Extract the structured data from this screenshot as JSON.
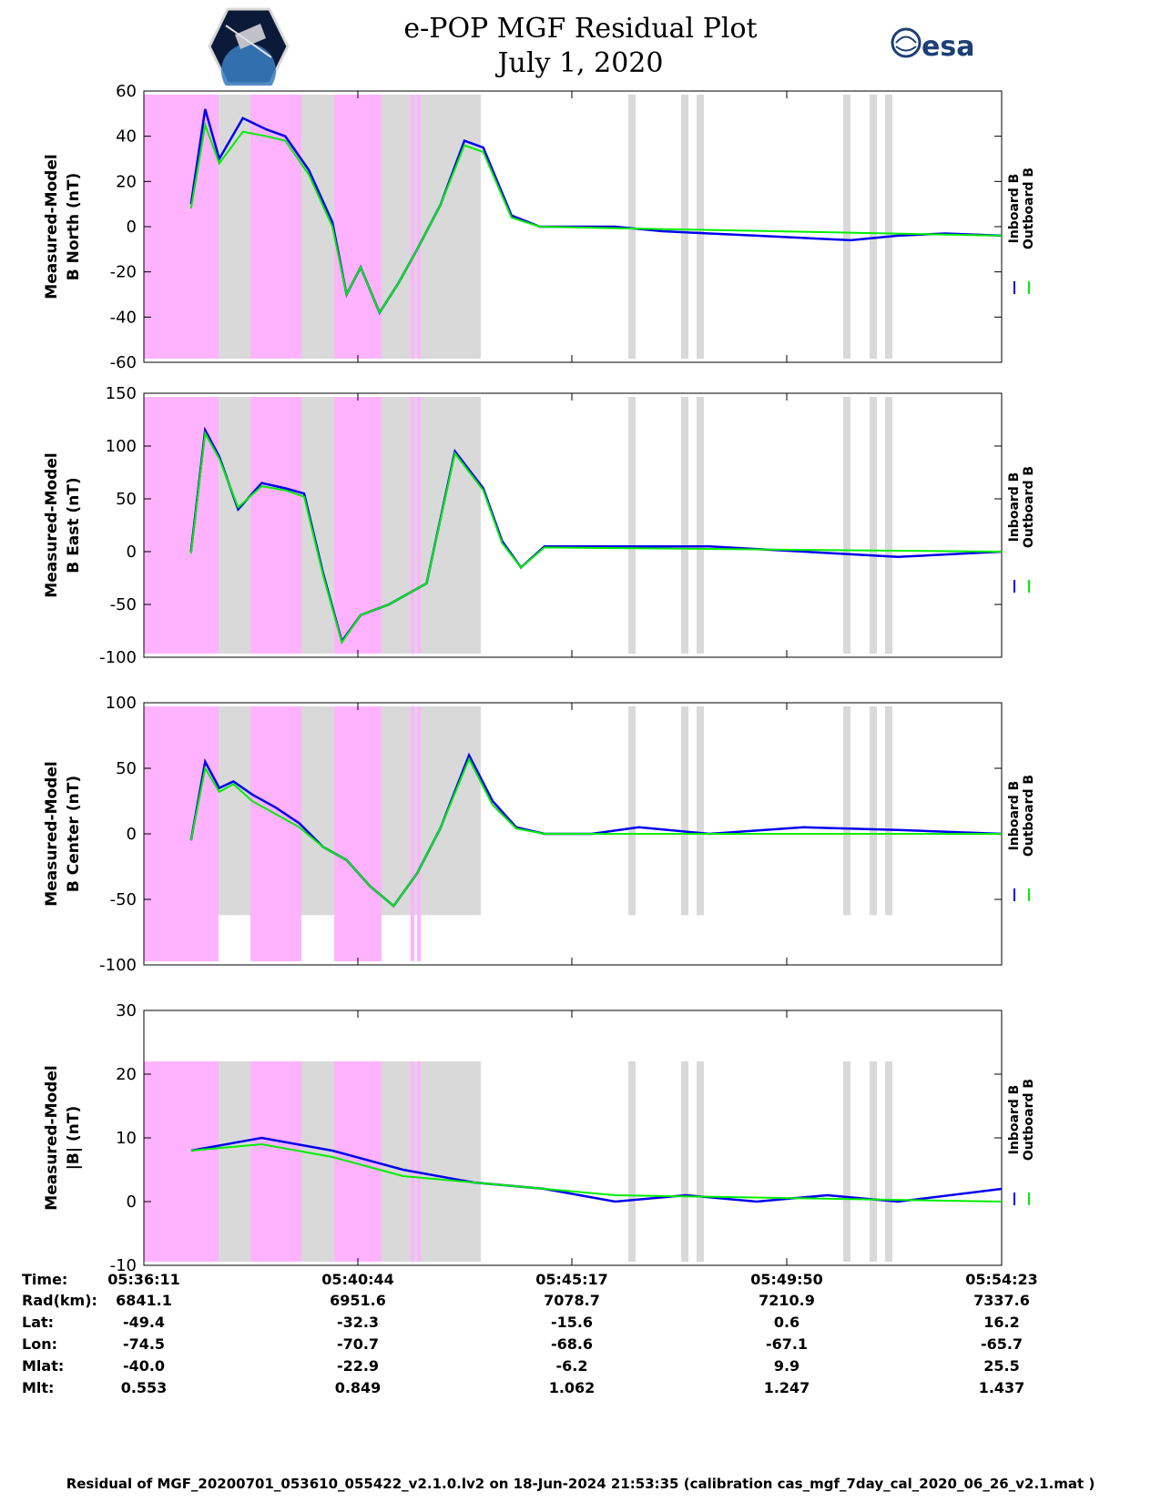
{
  "title": "e-POP MGF Residual Plot",
  "subtitle": "July 1, 2020",
  "logo_left": "cassiope-logo",
  "logo_right_text": "esa",
  "colors": {
    "inboard": "#0000ee",
    "outboard": "#00ee00",
    "eclipse": "#ffb3ff",
    "gray": "#d9d9d9"
  },
  "chart_data": [
    {
      "type": "line",
      "ylabel": "Measured-Model\nB North (nT)",
      "ylim": [
        -60,
        60
      ],
      "yticks": [
        "60",
        "40",
        "20",
        "0",
        "-20",
        "-40",
        "-60"
      ],
      "legend": [
        "Inboard B",
        "Outboard B"
      ],
      "series": [
        {
          "name": "Inboard B",
          "x": [
            0,
            0.3,
            0.8,
            1.0,
            1.3,
            1.6,
            2.1,
            2.6,
            3.0,
            3.5,
            4.0,
            4.3,
            4.6,
            5.0,
            5.4,
            5.8,
            6.3,
            6.8,
            7.2,
            7.8,
            8.4,
            9.0,
            9.5,
            10.0,
            11.0,
            12.0,
            13.0,
            14.0,
            15.0,
            16.0,
            17.0,
            18.2
          ],
          "values": [
            null,
            null,
            null,
            10,
            52,
            30,
            48,
            43,
            40,
            25,
            2,
            -30,
            -18,
            -38,
            -25,
            -10,
            10,
            38,
            35,
            5,
            0,
            0,
            0,
            0,
            -2,
            -3,
            -4,
            -5,
            -6,
            -4,
            -3,
            -4
          ]
        },
        {
          "name": "Outboard B",
          "x": [
            1.0,
            1.3,
            1.6,
            2.1,
            2.6,
            3.0,
            3.5,
            4.0,
            4.3,
            4.6,
            5.0,
            5.4,
            5.8,
            6.3,
            6.8,
            7.2,
            7.8,
            8.4,
            18.2
          ],
          "values": [
            8,
            45,
            28,
            42,
            40,
            38,
            23,
            0,
            -30,
            -18,
            -38,
            -25,
            -10,
            10,
            36,
            33,
            4,
            0,
            -4
          ]
        }
      ]
    },
    {
      "type": "line",
      "ylabel": "Measured-Model\nB East (nT)",
      "ylim": [
        -100,
        150
      ],
      "yticks": [
        "150",
        "100",
        "50",
        "0",
        "-50",
        "-100"
      ],
      "legend": [
        "Inboard B",
        "Outboard B"
      ],
      "series": [
        {
          "name": "Inboard B",
          "x": [
            1.0,
            1.3,
            1.6,
            2.0,
            2.5,
            3.0,
            3.4,
            3.8,
            4.2,
            4.6,
            5.2,
            6.0,
            6.6,
            7.2,
            7.6,
            8.0,
            8.5,
            9.0,
            10.0,
            12.0,
            14.0,
            16.0,
            18.2
          ],
          "values": [
            0,
            115,
            90,
            40,
            65,
            60,
            55,
            -20,
            -85,
            -60,
            -50,
            -30,
            95,
            60,
            10,
            -15,
            5,
            5,
            5,
            5,
            0,
            -5,
            0
          ]
        },
        {
          "name": "Outboard B",
          "x": [
            1.0,
            1.3,
            1.6,
            2.0,
            2.5,
            3.0,
            3.4,
            3.8,
            4.2,
            4.6,
            5.2,
            6.0,
            6.6,
            7.2,
            7.6,
            8.0,
            8.5,
            18.2
          ],
          "values": [
            -2,
            112,
            88,
            42,
            62,
            58,
            52,
            -22,
            -86,
            -60,
            -50,
            -30,
            93,
            58,
            8,
            -15,
            4,
            0
          ]
        }
      ]
    },
    {
      "type": "line",
      "ylabel": "Measured-Model\nB Center (nT)",
      "ylim": [
        -100,
        100
      ],
      "yticks": [
        "100",
        "50",
        "0",
        "-50",
        "-100"
      ],
      "legend": [
        "Inboard B",
        "Outboard B"
      ],
      "series": [
        {
          "name": "Inboard B",
          "x": [
            1.0,
            1.3,
            1.6,
            1.9,
            2.3,
            2.8,
            3.3,
            3.8,
            4.3,
            4.8,
            5.3,
            5.8,
            6.3,
            6.9,
            7.4,
            7.9,
            8.5,
            9.5,
            10.5,
            12.0,
            14.0,
            16.0,
            18.2
          ],
          "values": [
            -5,
            55,
            35,
            40,
            30,
            20,
            8,
            -10,
            -20,
            -40,
            -55,
            -30,
            5,
            60,
            25,
            5,
            0,
            0,
            5,
            0,
            5,
            3,
            0
          ]
        },
        {
          "name": "Outboard B",
          "x": [
            1.0,
            1.3,
            1.6,
            1.9,
            2.3,
            2.8,
            3.3,
            3.8,
            4.3,
            4.8,
            5.3,
            5.8,
            6.3,
            6.9,
            7.4,
            7.9,
            8.5,
            18.2
          ],
          "values": [
            -5,
            50,
            32,
            38,
            25,
            15,
            5,
            -10,
            -20,
            -40,
            -55,
            -30,
            5,
            57,
            22,
            4,
            0,
            0
          ]
        }
      ]
    },
    {
      "type": "line",
      "ylabel": "Measured-Model\n|B| (nT)",
      "ylim": [
        -10,
        30
      ],
      "yticks": [
        "30",
        "20",
        "10",
        "0",
        "-10"
      ],
      "legend": [
        "Inboard B",
        "Outboard B"
      ],
      "series": [
        {
          "name": "Inboard B",
          "x": [
            1.0,
            2.5,
            4.0,
            5.5,
            7.0,
            8.5,
            10.0,
            11.5,
            13.0,
            14.5,
            16.0,
            18.2
          ],
          "values": [
            8,
            10,
            8,
            5,
            3,
            2,
            0,
            1,
            0,
            1,
            0,
            2
          ]
        },
        {
          "name": "Outboard B",
          "x": [
            1.0,
            2.5,
            4.0,
            5.5,
            7.0,
            8.5,
            10.0,
            18.2
          ],
          "values": [
            8,
            9,
            7,
            4,
            3,
            2,
            1,
            0
          ]
        }
      ]
    }
  ],
  "table": {
    "labels": [
      "Time:",
      "Rad(km):",
      "Lat:",
      "Lon:",
      "Mlat:",
      "Mlt:"
    ],
    "columns": [
      [
        "05:36:11",
        "6841.1",
        "-49.4",
        "-74.5",
        "-40.0",
        "0.553"
      ],
      [
        "05:40:44",
        "6951.6",
        "-32.3",
        "-70.7",
        "-22.9",
        "0.849"
      ],
      [
        "05:45:17",
        "7078.7",
        "-15.6",
        "-68.6",
        "-6.2",
        "1.062"
      ],
      [
        "05:49:50",
        "7210.9",
        "0.6",
        "-67.1",
        "9.9",
        "1.247"
      ],
      [
        "05:54:23",
        "7337.6",
        "16.2",
        "-65.7",
        "25.5",
        "1.437"
      ]
    ]
  },
  "footer": "Residual of MGF_20200701_053610_055422_v2.1.0.lv2 on 18-Jun-2024 21:53:35 (calibration cas_mgf_7day_cal_2020_06_26_v2.1.mat )"
}
